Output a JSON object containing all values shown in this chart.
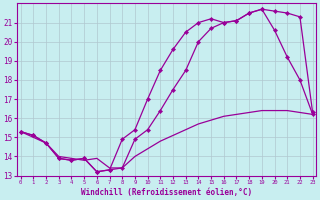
{
  "xlabel": "Windchill (Refroidissement éolien,°C)",
  "bg_color": "#c8eef0",
  "line_color": "#990099",
  "grid_color": "#b0c8d0",
  "xlim": [
    0,
    23
  ],
  "ylim": [
    13,
    22
  ],
  "yticks": [
    13,
    14,
    15,
    16,
    17,
    18,
    19,
    20,
    21
  ],
  "xticks": [
    0,
    1,
    2,
    3,
    4,
    5,
    6,
    7,
    8,
    9,
    10,
    11,
    12,
    13,
    14,
    15,
    16,
    17,
    18,
    19,
    20,
    21,
    22,
    23
  ],
  "series1_marked": {
    "x": [
      0,
      1,
      2,
      3,
      4,
      5,
      6,
      7,
      8,
      9,
      10,
      11,
      12,
      13,
      14,
      15,
      16,
      17,
      18,
      19,
      20,
      21,
      22,
      23
    ],
    "y": [
      15.3,
      15.1,
      14.7,
      13.9,
      13.8,
      13.9,
      13.2,
      13.3,
      14.9,
      15.4,
      17.0,
      18.5,
      19.6,
      20.5,
      21.0,
      21.2,
      21.0,
      21.1,
      21.5,
      21.7,
      20.6,
      19.2,
      18.0,
      16.2
    ]
  },
  "series2_marked": {
    "x": [
      0,
      1,
      2,
      3,
      4,
      5,
      6,
      7,
      8,
      9,
      10,
      11,
      12,
      13,
      14,
      15,
      16,
      17,
      18,
      19,
      20,
      21,
      22,
      23
    ],
    "y": [
      15.3,
      15.1,
      14.7,
      13.9,
      13.8,
      13.9,
      13.2,
      13.3,
      13.4,
      14.9,
      15.4,
      16.4,
      17.5,
      18.5,
      20.0,
      20.7,
      21.0,
      21.1,
      21.5,
      21.7,
      21.6,
      21.5,
      21.3,
      16.3
    ]
  },
  "series3_plain": {
    "x": [
      0,
      1,
      2,
      3,
      4,
      5,
      6,
      7,
      8,
      9,
      10,
      11,
      12,
      13,
      14,
      15,
      16,
      17,
      18,
      19,
      20,
      21,
      22,
      23
    ],
    "y": [
      15.3,
      15.0,
      14.7,
      14.0,
      13.9,
      13.8,
      13.9,
      13.4,
      13.4,
      14.0,
      14.4,
      14.8,
      15.1,
      15.4,
      15.7,
      15.9,
      16.1,
      16.2,
      16.3,
      16.4,
      16.4,
      16.4,
      16.3,
      16.2
    ]
  }
}
